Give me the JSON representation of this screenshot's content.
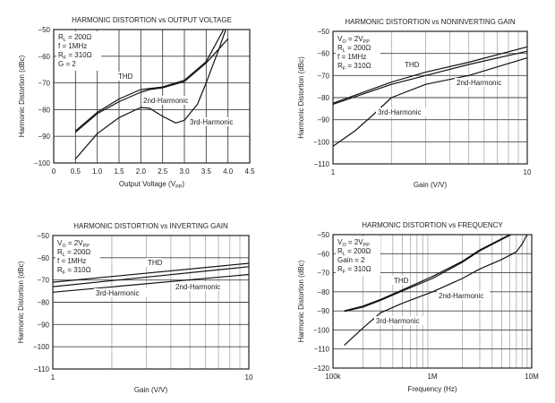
{
  "chart_data": [
    {
      "type": "line",
      "title": "HARMONIC DISTORTION vs OUTPUT VOLTAGE",
      "xlabel": "Output Voltage (V",
      "xlabel_sub": "PP",
      "xlabel_end": ")",
      "ylabel": "Harmonic Distortion (dBc)",
      "xscale": "linear",
      "xlim": [
        0,
        4.5
      ],
      "ylim": [
        -100,
        -50
      ],
      "xticks": [
        0,
        0.5,
        1,
        1.5,
        2,
        2.5,
        3,
        3.5,
        4,
        4.5
      ],
      "xtick_labels": [
        "0",
        "0.5",
        "1.0",
        "1.5",
        "2.0",
        "2.5",
        "3.0",
        "3.5",
        "4.0",
        "4.5"
      ],
      "yticks": [
        -50,
        -60,
        -70,
        -80,
        -90,
        -100
      ],
      "ytick_labels": [
        "−50",
        "−60",
        "−70",
        "−80",
        "−90",
        "−100"
      ],
      "grid": true,
      "conditions": [
        [
          "R",
          "L",
          " = 200Ω"
        ],
        [
          "f = 1MHz"
        ],
        [
          "R",
          "F",
          " = 310Ω"
        ],
        [
          "G = 2"
        ]
      ],
      "series": [
        {
          "name": "THD",
          "x": [
            0.5,
            1,
            1.5,
            2,
            2.5,
            3,
            3.5,
            3.9
          ],
          "y": [
            -88,
            -81,
            -76,
            -72.5,
            -71.5,
            -69,
            -62,
            -50
          ]
        },
        {
          "name": "2nd-Harmonic",
          "x": [
            0.5,
            1,
            1.5,
            2,
            2.2,
            2.5,
            3,
            3.5,
            4
          ],
          "y": [
            -88.5,
            -81.5,
            -77,
            -73.5,
            -72.5,
            -71.8,
            -69.5,
            -62.5,
            -53.5
          ]
        },
        {
          "name": "3rd-Harmonic",
          "x": [
            0.5,
            1,
            1.5,
            2,
            2.2,
            2.5,
            2.8,
            3,
            3.3,
            3.5,
            3.8,
            3.95
          ],
          "y": [
            -98.5,
            -89,
            -83,
            -79.2,
            -79.5,
            -82.5,
            -85,
            -84,
            -78,
            -70,
            -57,
            -50
          ]
        }
      ],
      "annotations": [
        "THD",
        "2nd-Harmonic",
        "3rd-Harmonic"
      ]
    },
    {
      "type": "line",
      "title": "HARMONIC DISTORTION vs NONINVERTING GAIN",
      "xlabel": "Gain (V/V)",
      "ylabel": "Harmonic Distortion (dBc)",
      "xscale": "log",
      "xlim": [
        1,
        10
      ],
      "ylim": [
        -110,
        -50
      ],
      "xticks": [
        1,
        10
      ],
      "xtick_labels": [
        "1",
        "10"
      ],
      "yticks": [
        -50,
        -60,
        -70,
        -80,
        -90,
        -100,
        -110
      ],
      "ytick_labels": [
        "−50",
        "−60",
        "−70",
        "−80",
        "−90",
        "−100",
        "−110"
      ],
      "grid": true,
      "conditions": [
        [
          "V",
          "O",
          " = 2V",
          "PP"
        ],
        [
          "R",
          "L",
          " = 200Ω"
        ],
        [
          "f = 1MHz"
        ],
        [
          "R",
          "F",
          " = 310Ω"
        ]
      ],
      "series": [
        {
          "name": "THD",
          "x": [
            1,
            2,
            3,
            5,
            10
          ],
          "y": [
            -82.5,
            -73,
            -68.5,
            -64,
            -57
          ]
        },
        {
          "name": "2nd-Harmonic",
          "x": [
            1,
            2,
            3,
            5,
            10
          ],
          "y": [
            -83,
            -74,
            -70,
            -65,
            -59
          ]
        },
        {
          "name": "3rd-Harmonic",
          "x": [
            1,
            1.3,
            1.6,
            2,
            3,
            5,
            10
          ],
          "y": [
            -102,
            -95,
            -88,
            -80,
            -74,
            -70,
            -62
          ]
        }
      ],
      "annotations": [
        "THD",
        "2nd-Harmonic",
        "3rd-Harmonic"
      ]
    },
    {
      "type": "line",
      "title": "HARMONIC DISTORTION vs INVERTING GAIN",
      "xlabel": "Gain (V/V)",
      "ylabel": "Harmonic Distortion (dBc)",
      "xscale": "log",
      "xlim": [
        1,
        10
      ],
      "ylim": [
        -110,
        -50
      ],
      "xticks": [
        1,
        10
      ],
      "xtick_labels": [
        "1",
        "10"
      ],
      "yticks": [
        -50,
        -60,
        -70,
        -80,
        -90,
        -100,
        -110
      ],
      "ytick_labels": [
        "−50",
        "−60",
        "−70",
        "−80",
        "−90",
        "−100",
        "−110"
      ],
      "grid": true,
      "conditions": [
        [
          "V",
          "O",
          " = 2V",
          "PP"
        ],
        [
          "R",
          "L",
          " = 200Ω"
        ],
        [
          "f = 1MHz"
        ],
        [
          "R",
          "F",
          " = 310Ω"
        ]
      ],
      "series": [
        {
          "name": "THD",
          "x": [
            1,
            10
          ],
          "y": [
            -71,
            -62.5
          ]
        },
        {
          "name": "2nd-Harmonic",
          "x": [
            1,
            10
          ],
          "y": [
            -73,
            -64
          ]
        },
        {
          "name": "3rd-Harmonic",
          "x": [
            1,
            10
          ],
          "y": [
            -75.5,
            -67.5
          ]
        }
      ],
      "annotations": [
        "THD",
        "2nd-Harmonic",
        "3rd-Harmonic"
      ]
    },
    {
      "type": "line",
      "title": "HARMONIC DISTORTION vs FREQUENCY",
      "xlabel": "Frequency (Hz)",
      "ylabel": "Harmonic Distortion (dBc)",
      "xscale": "log",
      "xlim": [
        100000,
        10000000
      ],
      "ylim": [
        -120,
        -50
      ],
      "xticks": [
        100000,
        1000000,
        10000000
      ],
      "xtick_labels": [
        "100k",
        "1M",
        "10M"
      ],
      "yticks": [
        -50,
        -60,
        -70,
        -80,
        -90,
        -100,
        -110,
        -120
      ],
      "ytick_labels": [
        "−50",
        "−60",
        "−70",
        "−80",
        "−90",
        "−100",
        "−110",
        "−120"
      ],
      "grid": true,
      "conditions": [
        [
          "V",
          "O",
          " = 2V",
          "PP"
        ],
        [
          "R",
          "L",
          " = 200Ω"
        ],
        [
          "Gain = 2"
        ],
        [
          "R",
          "F",
          " = 310Ω"
        ]
      ],
      "series": [
        {
          "name": "THD",
          "x": [
            130000,
            200000,
            300000,
            500000,
            1000000,
            2000000,
            3000000,
            6000000
          ],
          "y": [
            -90,
            -87.5,
            -84,
            -79,
            -72,
            -64,
            -58,
            -50
          ]
        },
        {
          "name": "2nd-Harmonic",
          "x": [
            130000,
            200000,
            300000,
            500000,
            1000000,
            2000000,
            3000000,
            6200000
          ],
          "y": [
            -90.3,
            -88,
            -84.5,
            -79.5,
            -73,
            -64.5,
            -58.5,
            -50
          ]
        },
        {
          "name": "3rd-Harmonic",
          "x": [
            130000,
            200000,
            300000,
            500000,
            1000000,
            2000000,
            3000000,
            5000000,
            7000000,
            8000000,
            9000000
          ],
          "y": [
            -108,
            -99,
            -91,
            -86,
            -80,
            -73,
            -68,
            -63,
            -59,
            -55,
            -50
          ]
        }
      ],
      "annotations": [
        "THD",
        "2nd-Harmonic",
        "3rd-Harmonic"
      ]
    }
  ]
}
